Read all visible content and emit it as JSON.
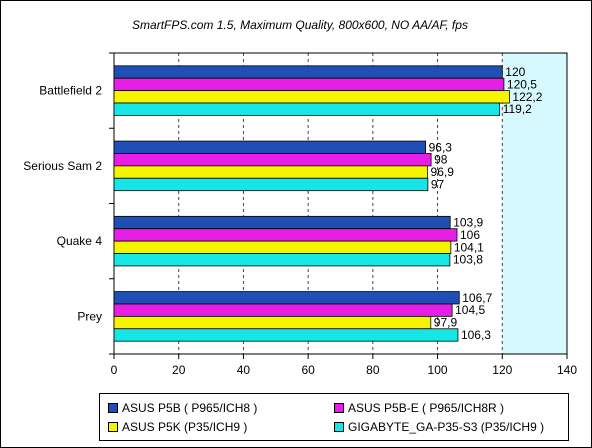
{
  "chart_data": {
    "type": "bar",
    "orientation": "horizontal",
    "title": "SmartFPS.com 1.5, Maximum Quality, 800x600, NO AA/AF, fps",
    "categories": [
      "Battlefield 2",
      "Serious Sam 2",
      "Quake 4",
      "Prey"
    ],
    "series": [
      {
        "name": "ASUS P5B ( P965/ICH8 )",
        "color": "#1f4fb4",
        "values": [
          120,
          96.3,
          103.9,
          106.7
        ],
        "labels": [
          "120",
          "96,3",
          "103,9",
          "106,7"
        ]
      },
      {
        "name": "ASUS P5B-E ( P965/ICH8R )",
        "color": "#e61ee6",
        "values": [
          120.5,
          98,
          106,
          104.5
        ],
        "labels": [
          "120,5",
          "98",
          "106",
          "104,5"
        ]
      },
      {
        "name": "ASUS P5K (P35/ICH9 )",
        "color": "#f5f500",
        "values": [
          122.2,
          96.9,
          104.1,
          97.9
        ],
        "labels": [
          "122,2",
          "96,9",
          "104,1",
          "97,9"
        ]
      },
      {
        "name": "GIGABYTE_GA-P35-S3 (P35/ICH9 )",
        "color": "#16e6e6",
        "values": [
          119.2,
          97,
          103.8,
          106.3
        ],
        "labels": [
          "119,2",
          "97",
          "103,8",
          "106,3"
        ]
      }
    ],
    "x_ticks": [
      "0",
      "20",
      "40",
      "60",
      "80",
      "100",
      "120",
      "140"
    ],
    "xlim": [
      0,
      140
    ],
    "grid": "vertical dashed",
    "highlight_band": {
      "from": 120,
      "to": 140,
      "color": "#d6f8ff"
    },
    "legend_position": "bottom"
  }
}
